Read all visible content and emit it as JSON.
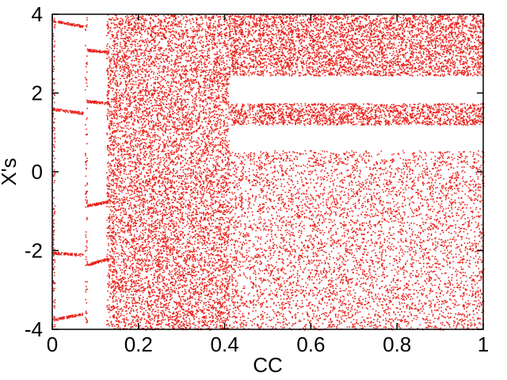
{
  "chart_data": {
    "type": "scatter",
    "title": "",
    "xlabel": "CC",
    "ylabel": "X's",
    "xlim": [
      0,
      1
    ],
    "ylim": [
      -4,
      4
    ],
    "grid": false,
    "legend": "none",
    "point_color": "#e8231b",
    "x_ticks": [
      {
        "value": 0,
        "label": "0"
      },
      {
        "value": 0.2,
        "label": "0.2"
      },
      {
        "value": 0.4,
        "label": "0.4"
      },
      {
        "value": 0.6,
        "label": "0.6"
      },
      {
        "value": 0.8,
        "label": "0.8"
      },
      {
        "value": 1,
        "label": "1"
      }
    ],
    "y_ticks": [
      {
        "value": -4,
        "label": "-4"
      },
      {
        "value": -2,
        "label": "-2"
      },
      {
        "value": 0,
        "label": "0"
      },
      {
        "value": 2,
        "label": "2"
      },
      {
        "value": 4,
        "label": "4"
      }
    ],
    "series": [
      {
        "regions": [
          {
            "x": [
              0.135,
              0.41
            ],
            "y": [
              -4.0,
              4.0
            ],
            "density": 0.55
          },
          {
            "x": [
              0.41,
              1.0
            ],
            "y": [
              2.45,
              4.0
            ],
            "density": 0.7
          },
          {
            "x": [
              0.41,
              1.0
            ],
            "y": [
              1.2,
              1.75
            ],
            "density": 0.8
          },
          {
            "x": [
              0.41,
              1.0
            ],
            "y": [
              -4.0,
              0.55
            ],
            "density": 0.55
          },
          {
            "x": [
              0.0,
              0.005
            ],
            "y": [
              -4.0,
              4.0
            ],
            "density": 0.5
          },
          {
            "x": [
              0.075,
              0.08
            ],
            "y": [
              -4.0,
              4.0
            ],
            "density": 0.35
          },
          {
            "x": [
              0.125,
              0.135
            ],
            "y": [
              -4.0,
              4.0
            ],
            "density": 0.5
          }
        ],
        "branches": [
          {
            "x": [
              0.0,
              0.07
            ],
            "y": [
              3.85,
              3.7
            ]
          },
          {
            "x": [
              0.0,
              0.07
            ],
            "y": [
              -2.05,
              -2.1
            ]
          },
          {
            "x": [
              0.0,
              0.07
            ],
            "y": [
              -3.75,
              -3.6
            ]
          },
          {
            "x": [
              0.0,
              0.07
            ],
            "y": [
              1.6,
              1.5
            ]
          },
          {
            "x": [
              0.08,
              0.13
            ],
            "y": [
              3.1,
              3.05
            ]
          },
          {
            "x": [
              0.08,
              0.13
            ],
            "y": [
              1.8,
              1.75
            ]
          },
          {
            "x": [
              0.08,
              0.13
            ],
            "y": [
              -0.85,
              -0.75
            ]
          },
          {
            "x": [
              0.08,
              0.13
            ],
            "y": [
              -2.35,
              -2.2
            ]
          }
        ]
      }
    ]
  }
}
